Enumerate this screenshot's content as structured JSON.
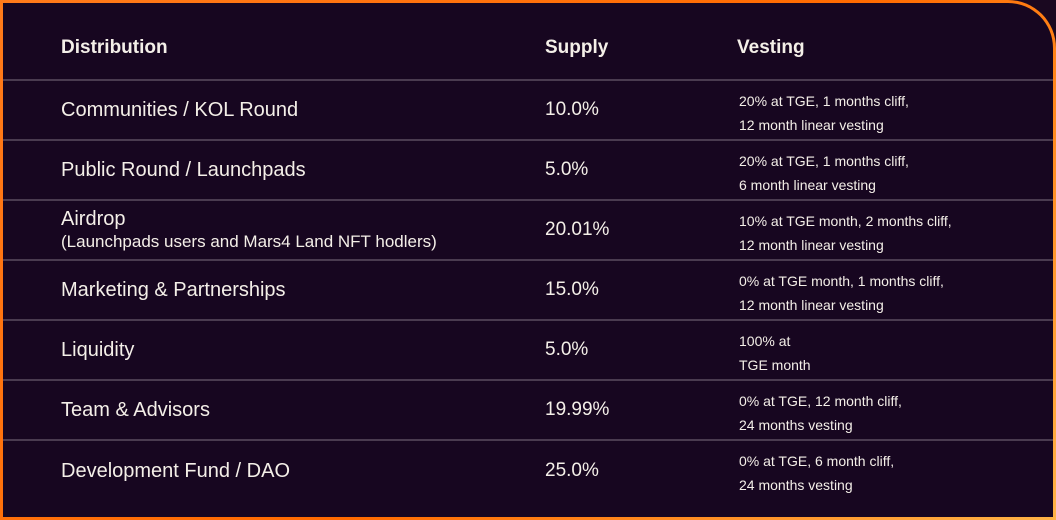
{
  "table": {
    "headers": {
      "distribution": "Distribution",
      "supply": "Supply",
      "vesting": "Vesting"
    },
    "rows": [
      {
        "name": "Communities / KOL Round",
        "sub": "",
        "supply": "10.0%",
        "vesting": [
          "20% at TGE, 1 months cliff,",
          "12 month linear vesting"
        ]
      },
      {
        "name": "Public Round / Launchpads",
        "sub": "",
        "supply": "5.0%",
        "vesting": [
          "20% at TGE, 1 months cliff,",
          "6 month linear vesting"
        ]
      },
      {
        "name": "Airdrop",
        "sub": "(Launchpads users and Mars4 Land NFT hodlers)",
        "supply": "20.01%",
        "vesting": [
          "10% at TGE month, 2 months cliff,",
          "12 month linear vesting"
        ]
      },
      {
        "name": "Marketing & Partnerships",
        "sub": "",
        "supply": "15.0%",
        "vesting": [
          "0% at TGE month, 1 months cliff,",
          "12 month linear vesting"
        ]
      },
      {
        "name": "Liquidity",
        "sub": "",
        "supply": "5.0%",
        "vesting": [
          "100% at",
          "TGE month"
        ]
      },
      {
        "name": "Team & Advisors",
        "sub": "",
        "supply": "19.99%",
        "vesting": [
          "0% at TGE, 12 month cliff,",
          "24 months vesting"
        ]
      },
      {
        "name": "Development Fund / DAO",
        "sub": "",
        "supply": "25.0%",
        "vesting": [
          "0% at TGE, 6 month cliff,",
          "24 months vesting"
        ]
      }
    ]
  },
  "colors": {
    "background": "#170620",
    "border_accent": "#ff7a1a",
    "text": "#f4efe8",
    "divider": "#4a3b50"
  }
}
